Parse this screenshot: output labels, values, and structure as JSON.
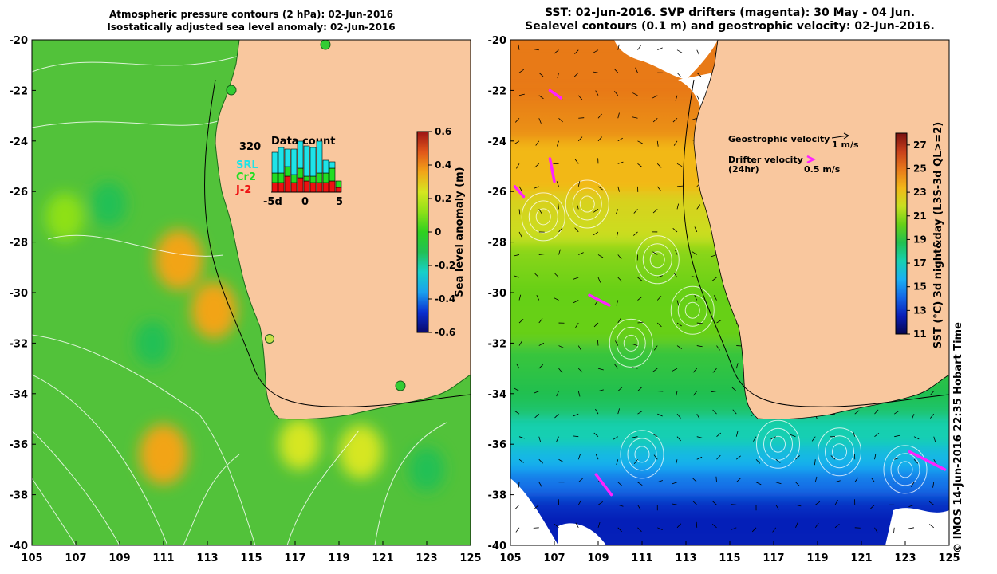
{
  "titles": {
    "left_line1": "Atmospheric pressure contours (2 hPa): 02-Jun-2016",
    "left_line2": "Isostatically adjusted sea level anomaly: 02-Jun-2016",
    "right_line1": "SST: 02-Jun-2016. SVP drifters (magenta): 30 May - 04 Jun.",
    "right_line2": "Sealevel contours (0.1 m) and geostrophic velocity: 02-Jun-2016."
  },
  "axes": {
    "x_ticks": [
      "105",
      "107",
      "109",
      "111",
      "113",
      "115",
      "117",
      "119",
      "121",
      "123",
      "125"
    ],
    "y_ticks": [
      "-20",
      "-22",
      "-24",
      "-26",
      "-28",
      "-30",
      "-32",
      "-34",
      "-36",
      "-38",
      "-40"
    ],
    "lon_range": [
      105,
      125
    ],
    "lat_range": [
      -20,
      -40
    ]
  },
  "left_colorbar": {
    "label": "Sea level anomaly (m)",
    "ticks": [
      "0.6",
      "0.4",
      "0.2",
      "0",
      "-0.2",
      "-0.4",
      "-0.6"
    ],
    "range": [
      -0.6,
      0.6
    ]
  },
  "right_colorbar": {
    "label": "SST (°C) 3d night&day (L3S-3d QL>=2)",
    "ticks": [
      "27",
      "25",
      "23",
      "21",
      "19",
      "17",
      "15",
      "13",
      "11"
    ],
    "range": [
      11,
      28
    ]
  },
  "data_count": {
    "title": "Data count",
    "max_label": "320",
    "x_ticks": [
      "-5d",
      "0",
      "5"
    ],
    "sources": [
      {
        "name": "SRL",
        "color": "#1ee3e8"
      },
      {
        "name": "Cr2",
        "color": "#22dd22"
      },
      {
        "name": "J-2",
        "color": "#ee1111"
      }
    ],
    "j2": [
      60,
      60,
      100,
      60,
      90,
      70,
      60,
      60,
      60,
      70,
      30
    ],
    "cr2": [
      60,
      60,
      60,
      50,
      60,
      30,
      40,
      60,
      60,
      80,
      40
    ],
    "srl": [
      130,
      160,
      110,
      160,
      170,
      190,
      180,
      200,
      80,
      40,
      0
    ]
  },
  "velocity_legend": {
    "geo_label": "Geostrophic velocity",
    "geo_scale": "1 m/s",
    "drifter_label": "Drifter velocity",
    "drifter_sub": "(24hr)",
    "drifter_scale": "0.5 m/s"
  },
  "credit": "© IMOS 14-Jun-2016 22:35 Hobart Time",
  "colors": {
    "land": "#f9c79e",
    "drifter": "#ff22ff",
    "sla_cmap": [
      "#08086b",
      "#0a2fd0",
      "#1aa0ee",
      "#18d0c8",
      "#22c055",
      "#2fd01f",
      "#8ee018",
      "#d6e620",
      "#f2a418",
      "#e0561a",
      "#9c1414"
    ],
    "sst_cmap": [
      "#06064f",
      "#0a1fb8",
      "#1466e6",
      "#1ab0f2",
      "#18d0b0",
      "#22c050",
      "#66d018",
      "#c8e020",
      "#f2b818",
      "#e87a1a",
      "#c8401a",
      "#7a1010"
    ]
  },
  "chart_data": [
    {
      "type": "heatmap",
      "title": "Atmospheric pressure contours (2 hPa): 02-Jun-2016 / Isostatically adjusted sea level anomaly: 02-Jun-2016",
      "xlabel": "",
      "ylabel": "",
      "xlim": [
        105,
        125
      ],
      "ylim": [
        -40,
        -20
      ],
      "colorbar": "Sea level anomaly (m)",
      "clim": [
        -0.6,
        0.6
      ],
      "anomalies": [
        {
          "lon": 111.7,
          "lat": -28.7,
          "value": 0.35
        },
        {
          "lon": 113.3,
          "lat": -30.7,
          "value": 0.3
        },
        {
          "lon": 111.0,
          "lat": -36.4,
          "value": 0.35
        },
        {
          "lon": 120.0,
          "lat": -36.3,
          "value": 0.25
        },
        {
          "lon": 117.2,
          "lat": -36.0,
          "value": 0.2
        },
        {
          "lon": 106.5,
          "lat": -27.0,
          "value": 0.15
        },
        {
          "lon": 110.5,
          "lat": -32.0,
          "value": -0.1
        },
        {
          "lon": 108.5,
          "lat": -26.5,
          "value": -0.1
        },
        {
          "lon": 123.0,
          "lat": -37.0,
          "value": -0.1
        }
      ],
      "tide_gauges": [
        {
          "lon": 114.1,
          "lat": -22.0
        },
        {
          "lon": 118.5,
          "lat": -20.2
        },
        {
          "lon": 115.9,
          "lat": -31.8
        },
        {
          "lon": 121.9,
          "lat": -33.7
        }
      ]
    },
    {
      "type": "heatmap",
      "title": "SST: 02-Jun-2016. SVP drifters (magenta): 30 May - 04 Jun. / Sealevel contours (0.1 m) and geostrophic velocity: 02-Jun-2016.",
      "xlabel": "",
      "ylabel": "",
      "xlim": [
        105,
        125
      ],
      "ylim": [
        -40,
        -20
      ],
      "colorbar": "SST (°C) 3d night&day (L3S-3d QL>=2)",
      "clim": [
        11,
        28
      ],
      "sst_by_latitude": [
        {
          "lat": -20,
          "sst": 25.5
        },
        {
          "lat": -22,
          "sst": 24.5
        },
        {
          "lat": -24,
          "sst": 24.0
        },
        {
          "lat": -26,
          "sst": 23.0
        },
        {
          "lat": -28,
          "sst": 21.5
        },
        {
          "lat": -30,
          "sst": 20.0
        },
        {
          "lat": -32,
          "sst": 19.5
        },
        {
          "lat": -34,
          "sst": 18.5
        },
        {
          "lat": -35,
          "sst": 17.5
        },
        {
          "lat": -36,
          "sst": 16.5
        },
        {
          "lat": -37,
          "sst": 15.5
        },
        {
          "lat": -38,
          "sst": 14.0
        },
        {
          "lat": -39,
          "sst": 12.5
        },
        {
          "lat": -40,
          "sst": 12.0
        }
      ],
      "drifters": [
        {
          "lon": [
            106.8,
            107.3
          ],
          "lat": [
            -22.0,
            -22.3
          ]
        },
        {
          "lon": [
            106.8,
            107.0
          ],
          "lat": [
            -24.7,
            -25.6
          ]
        },
        {
          "lon": [
            105.2,
            105.6
          ],
          "lat": [
            -25.8,
            -26.2
          ]
        },
        {
          "lon": [
            108.6,
            109.5
          ],
          "lat": [
            -30.1,
            -30.5
          ]
        },
        {
          "lon": [
            108.9,
            109.6
          ],
          "lat": [
            -37.2,
            -38.0
          ]
        },
        {
          "lon": [
            123.2,
            124.8
          ],
          "lat": [
            -36.3,
            -37.0
          ]
        }
      ]
    },
    {
      "type": "bar",
      "title": "Data count",
      "categories": [
        "-5",
        "-4",
        "-3",
        "-2",
        "-1",
        "0",
        "1",
        "2",
        "3",
        "4",
        "5"
      ],
      "ylim": [
        0,
        320
      ],
      "series": [
        {
          "name": "J-2",
          "values": [
            60,
            60,
            100,
            60,
            90,
            70,
            60,
            60,
            60,
            70,
            30
          ]
        },
        {
          "name": "Cr2",
          "values": [
            60,
            60,
            60,
            50,
            60,
            30,
            40,
            60,
            60,
            80,
            40
          ]
        },
        {
          "name": "SRL",
          "values": [
            130,
            160,
            110,
            160,
            170,
            190,
            180,
            200,
            80,
            40,
            0
          ]
        }
      ]
    }
  ]
}
